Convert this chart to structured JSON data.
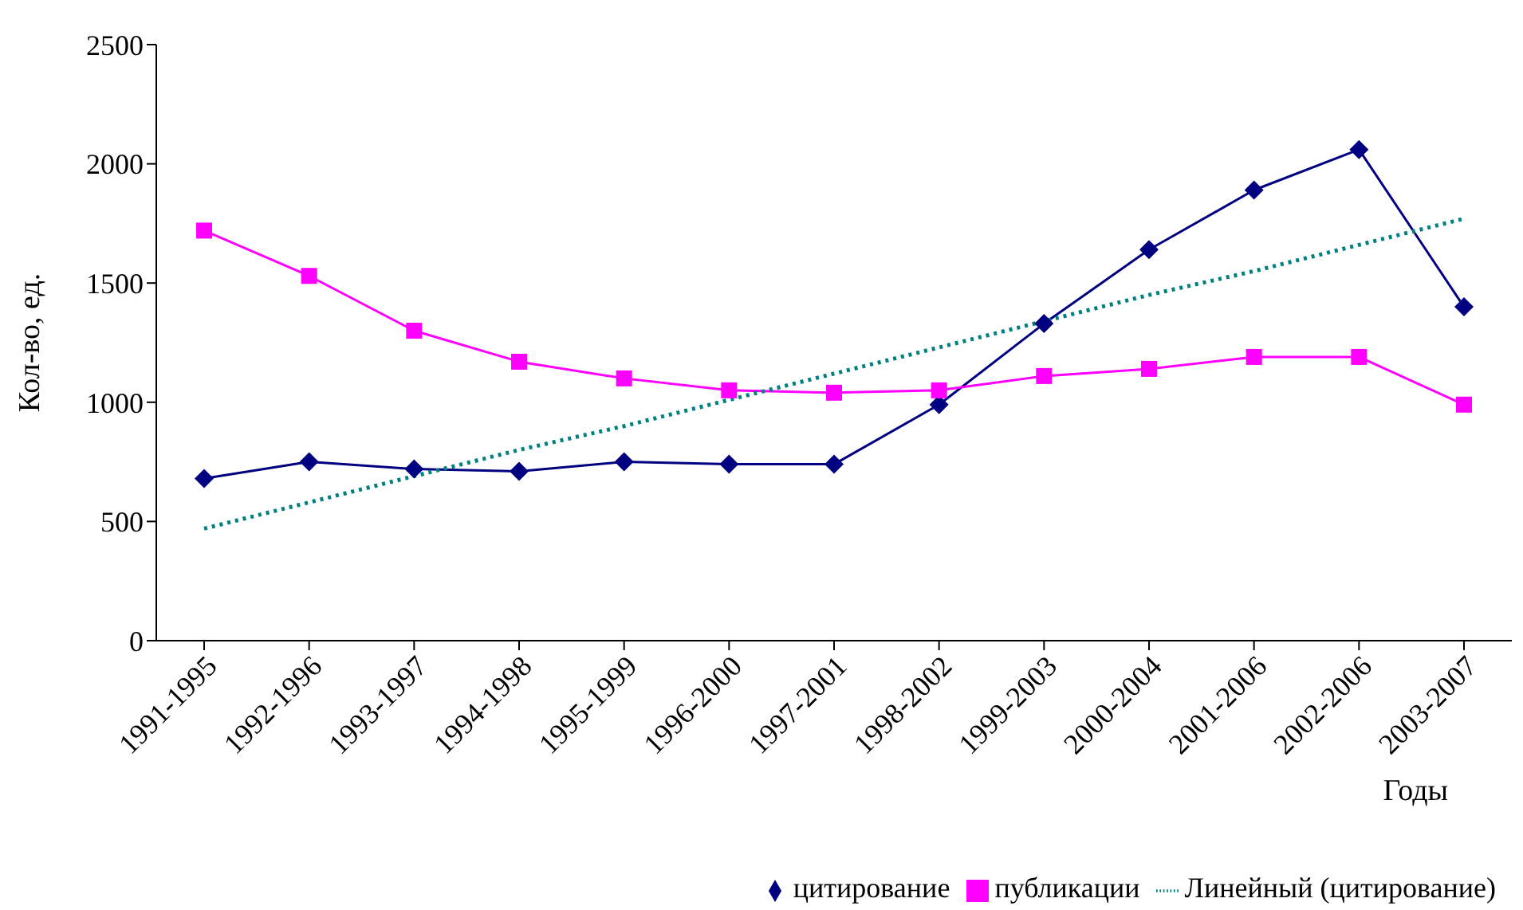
{
  "chart_data": {
    "type": "line",
    "categories": [
      "1991-1995",
      "1992-1996",
      "1993-1997",
      "1994-1998",
      "1995-1999",
      "1996-2000",
      "1997-2001",
      "1998-2002",
      "1999-2003",
      "2000-2004",
      "2001-2006",
      "2002-2006",
      "2003-2007"
    ],
    "xlabel": "Годы",
    "ylabel": "Кол-во, ед.",
    "ylim": [
      0,
      2500
    ],
    "yticks": [
      0,
      500,
      1000,
      1500,
      2000,
      2500
    ],
    "grid": false,
    "legend": "bottom",
    "series": [
      {
        "name": "цитирование",
        "color": "#000080",
        "marker": "diamond",
        "line_style": "solid",
        "values": [
          680,
          750,
          720,
          710,
          750,
          740,
          740,
          990,
          1330,
          1640,
          1890,
          2060,
          1400
        ]
      },
      {
        "name": "публикации",
        "color": "#ff00ff",
        "marker": "square",
        "line_style": "solid",
        "values": [
          1720,
          1530,
          1300,
          1170,
          1100,
          1050,
          1040,
          1050,
          1110,
          1140,
          1190,
          1190,
          990
        ]
      },
      {
        "name": "Линейный (цитирование)",
        "color": "#008080",
        "marker": "none",
        "line_style": "dotted",
        "values": [
          470,
          580,
          690,
          800,
          900,
          1010,
          1120,
          1230,
          1340,
          1450,
          1550,
          1660,
          1770
        ]
      }
    ]
  }
}
